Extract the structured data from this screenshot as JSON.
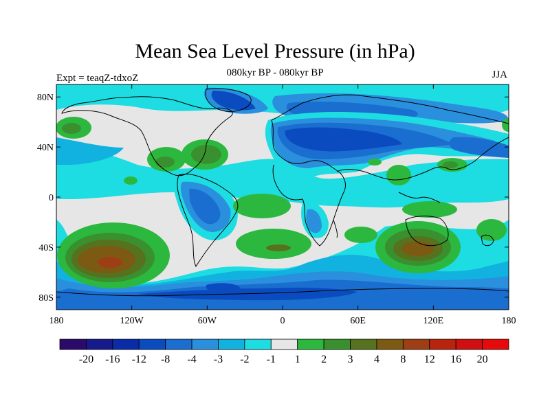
{
  "header": {
    "title": "Mean Sea Level Pressure (in hPa)",
    "subtitle": "080kyr BP - 080kyr BP",
    "experiment": "Expt = teaqZ-tdxoZ",
    "season": "JJA"
  },
  "map": {
    "lat_ticks": [
      {
        "value": 80,
        "label": "80N"
      },
      {
        "value": 40,
        "label": "40N"
      },
      {
        "value": 0,
        "label": "0"
      },
      {
        "value": -40,
        "label": "40S"
      },
      {
        "value": -80,
        "label": "80S"
      }
    ],
    "lon_ticks": [
      {
        "value": -180,
        "label": "180"
      },
      {
        "value": -120,
        "label": "120W"
      },
      {
        "value": -60,
        "label": "60W"
      },
      {
        "value": 0,
        "label": "0"
      },
      {
        "value": 60,
        "label": "60E"
      },
      {
        "value": 120,
        "label": "120E"
      },
      {
        "value": 180,
        "label": "180"
      }
    ],
    "lon_range": [
      -180,
      180
    ],
    "lat_range": [
      -90,
      90
    ]
  },
  "chart_data": {
    "type": "heatmap",
    "title": "Mean Sea Level Pressure (in hPa)",
    "units": "hPa",
    "colorbar": {
      "boundaries": [
        "-20",
        "-16",
        "-12",
        "-8",
        "-4",
        "-3",
        "-2",
        "-1",
        "1",
        "2",
        "3",
        "4",
        "8",
        "12",
        "16",
        "20"
      ],
      "colors": [
        "#2a0a6a",
        "#161a8a",
        "#0a2ca8",
        "#0a4cc0",
        "#1a6ed0",
        "#2a8fdc",
        "#12b2e0",
        "#1ddce2",
        "#e6e6e6",
        "#2cb83e",
        "#3a8f2e",
        "#56721e",
        "#7c5a14",
        "#9e3e14",
        "#b8240e",
        "#d01010",
        "#e60a0a"
      ]
    },
    "regions": [
      {
        "name": "south-pacific-high",
        "lon": -125,
        "lat": -47,
        "value": 12
      },
      {
        "name": "south-indian-high",
        "lon": 110,
        "lat": -40,
        "value": 8
      },
      {
        "name": "south-atlantic-high",
        "lon": -15,
        "lat": -37,
        "value": 4
      },
      {
        "name": "north-atlantic-high",
        "lon": -48,
        "lat": 33,
        "value": 4
      },
      {
        "name": "north-pacific-high",
        "lon": -165,
        "lat": 47,
        "value": 3
      },
      {
        "name": "southern-ocean-low",
        "lon": 0,
        "lat": -68,
        "value": -4
      },
      {
        "name": "eurasia-low",
        "lon": 50,
        "lat": 45,
        "value": -8
      },
      {
        "name": "greenland-low",
        "lon": -45,
        "lat": 72,
        "value": -8
      },
      {
        "name": "south-america-low",
        "lon": -60,
        "lat": -15,
        "value": -4
      },
      {
        "name": "east-africa-low",
        "lon": 30,
        "lat": -15,
        "value": -3
      }
    ]
  }
}
